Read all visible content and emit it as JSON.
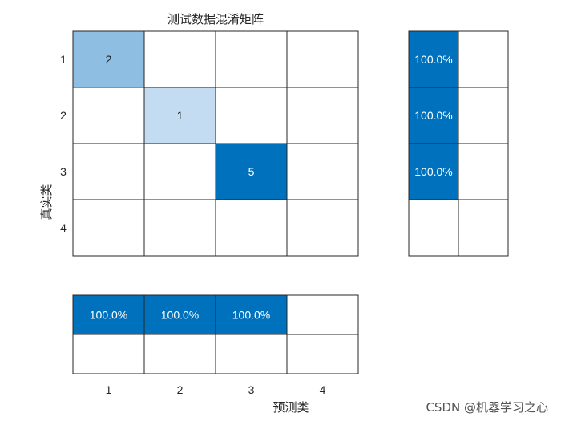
{
  "chart_data": {
    "type": "heatmap",
    "title": "测试数据混淆矩阵",
    "xlabel": "预测类",
    "ylabel": "真实类",
    "x_ticks": [
      "1",
      "2",
      "3",
      "4"
    ],
    "y_ticks": [
      "1",
      "2",
      "3",
      "4"
    ],
    "matrix": [
      [
        2,
        0,
        0,
        0
      ],
      [
        0,
        1,
        0,
        0
      ],
      [
        0,
        0,
        5,
        0
      ],
      [
        0,
        0,
        0,
        0
      ]
    ],
    "row_summary": [
      [
        "100.0%",
        ""
      ],
      [
        "100.0%",
        ""
      ],
      [
        "100.0%",
        ""
      ],
      [
        "",
        ""
      ]
    ],
    "column_summary": [
      [
        "100.0%",
        "100.0%",
        "100.0%",
        ""
      ],
      [
        "",
        "",
        "",
        ""
      ]
    ],
    "colors": {
      "max": "#0072BD",
      "low": "#C3DCF1",
      "mid": "#8EBFE3",
      "empty": "#FFFFFF",
      "grid": "#262626"
    }
  },
  "watermark": "CSDN @机器学习之心"
}
